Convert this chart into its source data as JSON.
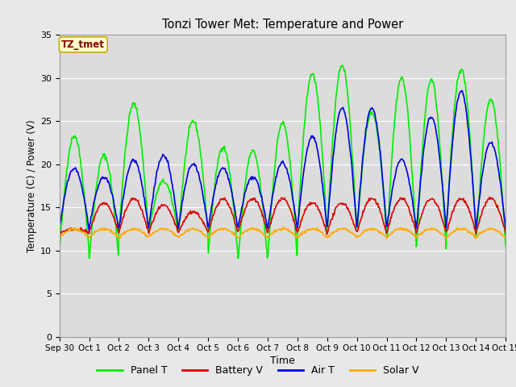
{
  "title": "Tonzi Tower Met: Temperature and Power",
  "xlabel": "Time",
  "ylabel": "Temperature (C) / Power (V)",
  "ylim": [
    0,
    35
  ],
  "yticks": [
    0,
    5,
    10,
    15,
    20,
    25,
    30,
    35
  ],
  "x_labels": [
    "Sep 30",
    "Oct 1",
    "Oct 2",
    "Oct 3",
    "Oct 4",
    "Oct 5",
    "Oct 6",
    "Oct 7",
    "Oct 8",
    "Oct 9",
    "Oct 10",
    "Oct 11",
    "Oct 12",
    "Oct 13",
    "Oct 14",
    "Oct 15"
  ],
  "annotation_text": "TZ_tmet",
  "annotation_bg": "#FFFFCC",
  "annotation_border": "#CCAA00",
  "annotation_text_color": "#880000",
  "colors": {
    "panel_t": "#00EE00",
    "battery_v": "#DD0000",
    "air_t": "#0000DD",
    "solar_v": "#FFAA00"
  },
  "legend_labels": [
    "Panel T",
    "Battery V",
    "Air T",
    "Solar V"
  ],
  "fig_bg_color": "#E8E8E8",
  "plot_bg": "#DCDCDC",
  "grid_color": "#FFFFFF",
  "line_width": 1.2,
  "num_days": 15,
  "points_per_day": 48,
  "panel_t_base": [
    9.8,
    9.0,
    12.0,
    12.0,
    12.0,
    9.5,
    8.7,
    9.0,
    12.0,
    12.0,
    12.0,
    10.5,
    9.8,
    12.0,
    10.5,
    10.5
  ],
  "panel_t_peaks": [
    23.3,
    21.0,
    27.0,
    18.0,
    25.0,
    22.0,
    21.5,
    24.8,
    30.5,
    31.5,
    26.0,
    30.0,
    29.8,
    31.0,
    27.5
  ],
  "batt_peaks": [
    12.5,
    15.5,
    16.0,
    15.2,
    14.5,
    16.0,
    16.0,
    16.0,
    15.5,
    15.5,
    16.0,
    16.0,
    16.0,
    16.0,
    16.0
  ],
  "air_peaks": [
    19.5,
    18.5,
    20.5,
    21.0,
    20.0,
    19.5,
    18.5,
    20.2,
    23.2,
    26.5,
    26.5,
    20.5,
    25.5,
    28.5,
    22.5
  ],
  "solar_base": 11.5,
  "solar_amp": 1.0,
  "batt_night": 12.0,
  "air_night": 12.5
}
